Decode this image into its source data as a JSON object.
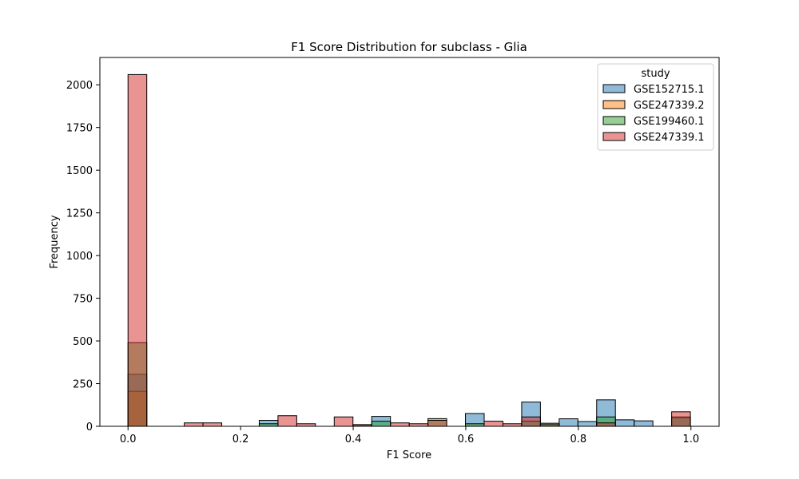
{
  "chart_data": {
    "type": "bar",
    "title": "F1 Score Distribution for subclass - Glia",
    "xlabel": "F1 Score",
    "ylabel": "Frequency",
    "xlim": [
      -0.05,
      1.05
    ],
    "ylim": [
      0,
      2160
    ],
    "xticks": [
      0.0,
      0.2,
      0.4,
      0.6,
      0.8,
      1.0
    ],
    "xtick_labels": [
      "0.0",
      "0.2",
      "0.4",
      "0.6",
      "0.8",
      "1.0"
    ],
    "yticks": [
      0,
      250,
      500,
      750,
      1000,
      1250,
      1500,
      1750,
      2000
    ],
    "ytick_labels": [
      "0",
      "250",
      "500",
      "750",
      "1000",
      "1250",
      "1500",
      "1750",
      "2000"
    ],
    "grid": false,
    "legend": {
      "title": "study",
      "placement": "top-right"
    },
    "bin_start": 0.0,
    "bin_width": 0.0333,
    "series": [
      {
        "name": "GSE152715.1",
        "color": "#1f77b4",
        "values": [
          305,
          0,
          0,
          0,
          0,
          0,
          0,
          35,
          0,
          0,
          0,
          0,
          0,
          58,
          0,
          0,
          0,
          0,
          75,
          0,
          0,
          142,
          0,
          44,
          28,
          155,
          38,
          32,
          0,
          50
        ]
      },
      {
        "name": "GSE247339.2",
        "color": "#ff7f0e",
        "values": [
          205,
          0,
          0,
          0,
          0,
          0,
          0,
          0,
          0,
          0,
          0,
          0,
          0,
          0,
          0,
          0,
          0,
          0,
          0,
          0,
          0,
          0,
          0,
          0,
          0,
          0,
          0,
          0,
          0,
          0
        ]
      },
      {
        "name": "GSE199460.1",
        "color": "#2ca02c",
        "values": [
          490,
          0,
          0,
          0,
          0,
          0,
          0,
          15,
          0,
          0,
          0,
          0,
          8,
          30,
          0,
          0,
          45,
          0,
          15,
          0,
          0,
          30,
          18,
          0,
          0,
          55,
          0,
          0,
          0,
          55
        ]
      },
      {
        "name": "GSE247339.1",
        "color": "#d62728",
        "values": [
          2060,
          0,
          0,
          20,
          20,
          0,
          0,
          0,
          62,
          15,
          0,
          55,
          10,
          0,
          20,
          15,
          35,
          0,
          0,
          30,
          15,
          55,
          10,
          0,
          0,
          20,
          0,
          0,
          0,
          85
        ]
      }
    ]
  }
}
